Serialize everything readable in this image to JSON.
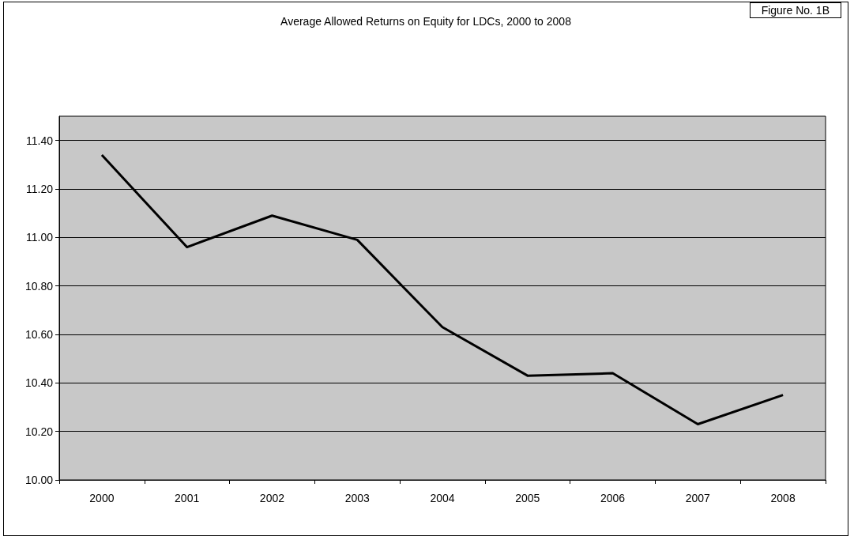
{
  "chart_data": {
    "type": "line",
    "title": "Average Allowed Returns on Equity for LDCs, 2000 to 2008",
    "annotations": [
      "Figure No. 1B"
    ],
    "categories": [
      "2000",
      "2001",
      "2002",
      "2003",
      "2004",
      "2005",
      "2006",
      "2007",
      "2008"
    ],
    "series": [
      {
        "color": "#000000",
        "values": [
          11.34,
          10.96,
          11.09,
          10.99,
          10.63,
          10.43,
          10.44,
          10.23,
          10.35
        ]
      }
    ],
    "ylim": [
      10,
      11.5
    ],
    "yticks": [
      {
        "value": 10,
        "label": "10.00"
      },
      {
        "value": 10.2,
        "label": "10.20"
      },
      {
        "value": 10.4,
        "label": "10.40"
      },
      {
        "value": 10.6,
        "label": "10.60"
      },
      {
        "value": 10.8,
        "label": "10.80"
      },
      {
        "value": 11,
        "label": "11.00"
      },
      {
        "value": 11.2,
        "label": "11.20"
      },
      {
        "value": 11.4,
        "label": "11.40"
      }
    ],
    "grid": "y",
    "marker": "none",
    "line_style": "solid"
  }
}
